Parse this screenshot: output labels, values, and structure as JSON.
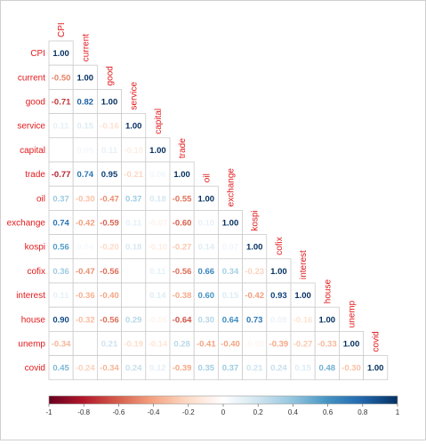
{
  "chart_data": {
    "type": "heatmap",
    "title": "",
    "variables": [
      "CPI",
      "current",
      "good",
      "service",
      "capital",
      "trade",
      "oil",
      "exchange",
      "kospi",
      "cofix",
      "interest",
      "house",
      "unemp",
      "covid"
    ],
    "matrix": [
      [
        1.0,
        null,
        null,
        null,
        null,
        null,
        null,
        null,
        null,
        null,
        null,
        null,
        null,
        null
      ],
      [
        -0.5,
        1.0,
        null,
        null,
        null,
        null,
        null,
        null,
        null,
        null,
        null,
        null,
        null,
        null
      ],
      [
        -0.71,
        0.82,
        1.0,
        null,
        null,
        null,
        null,
        null,
        null,
        null,
        null,
        null,
        null,
        null
      ],
      [
        0.11,
        0.15,
        -0.16,
        1.0,
        null,
        null,
        null,
        null,
        null,
        null,
        null,
        null,
        null,
        null
      ],
      [
        0.01,
        0.05,
        0.11,
        -0.1,
        1.0,
        null,
        null,
        null,
        null,
        null,
        null,
        null,
        null,
        null
      ],
      [
        -0.77,
        0.74,
        0.95,
        -0.21,
        0.06,
        1.0,
        null,
        null,
        null,
        null,
        null,
        null,
        null,
        null
      ],
      [
        0.37,
        -0.3,
        -0.47,
        0.37,
        0.18,
        -0.55,
        1.0,
        null,
        null,
        null,
        null,
        null,
        null,
        null
      ],
      [
        0.74,
        -0.42,
        -0.59,
        0.11,
        -0.07,
        -0.6,
        0.1,
        1.0,
        null,
        null,
        null,
        null,
        null,
        null
      ],
      [
        0.56,
        0.04,
        -0.2,
        0.18,
        -0.1,
        -0.27,
        0.14,
        0.07,
        1.0,
        null,
        null,
        null,
        null,
        null
      ],
      [
        0.36,
        -0.47,
        -0.56,
        0.0,
        0.11,
        -0.56,
        0.66,
        0.34,
        -0.23,
        1.0,
        null,
        null,
        null,
        null
      ],
      [
        0.11,
        -0.36,
        -0.4,
        0.0,
        0.14,
        -0.38,
        0.6,
        0.15,
        -0.42,
        0.93,
        1.0,
        null,
        null,
        null
      ],
      [
        0.9,
        -0.32,
        -0.56,
        0.29,
        -0.06,
        -0.64,
        0.3,
        0.64,
        0.73,
        0.09,
        -0.16,
        1.0,
        null,
        null
      ],
      [
        -0.34,
        0.01,
        0.21,
        -0.19,
        -0.14,
        0.28,
        -0.41,
        -0.4,
        -0.05,
        -0.39,
        -0.27,
        -0.33,
        1.0,
        null
      ],
      [
        0.45,
        -0.24,
        -0.34,
        0.24,
        0.12,
        -0.39,
        0.35,
        0.37,
        0.21,
        0.24,
        0.15,
        0.48,
        -0.3,
        1.0
      ]
    ],
    "colorbar": {
      "range": [
        -1,
        1
      ],
      "ticks": [
        "-1",
        "-0.8",
        "-0.6",
        "-0.4",
        "-0.2",
        "0",
        "0.2",
        "0.4",
        "0.6",
        "0.8",
        "1"
      ],
      "colors": [
        "#67001F",
        "#B2182B",
        "#D6604D",
        "#F4A582",
        "#FDDBC7",
        "#FFFFFF",
        "#D1E5F0",
        "#92C5DE",
        "#4393C3",
        "#2166AC",
        "#053061"
      ]
    },
    "label_color": "#E31A1C",
    "grid_color": "#cccccc"
  }
}
